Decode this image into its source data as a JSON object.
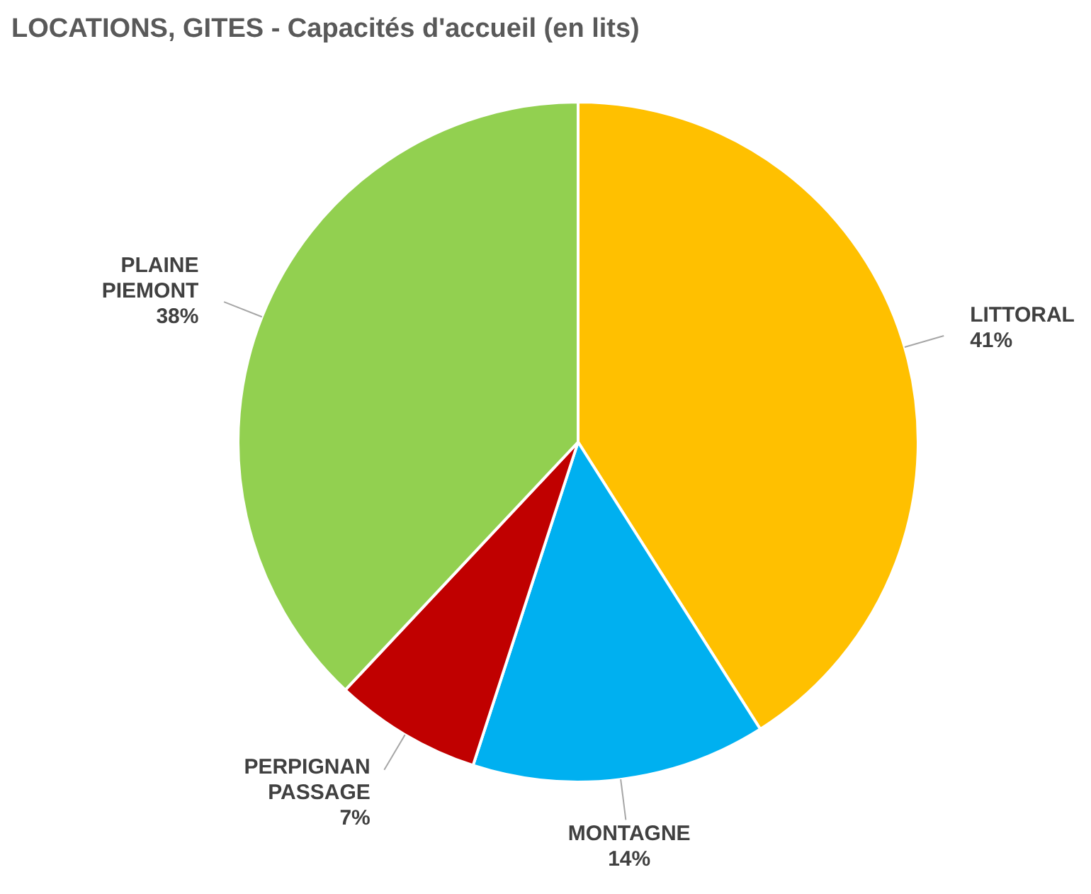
{
  "chart_data": {
    "type": "pie",
    "title": "LOCATIONS, GITES - Capacités d'accueil (en lits)",
    "categories": [
      "LITTORAL",
      "MONTAGNE",
      "PERPIGNAN PASSAGE",
      "PLAINE PIEMONT"
    ],
    "values": [
      41,
      14,
      7,
      38
    ],
    "value_labels": [
      "41%",
      "14%",
      "7%",
      "38%"
    ],
    "colors": [
      "#ffc000",
      "#00b0f0",
      "#c00000",
      "#92d050"
    ]
  }
}
